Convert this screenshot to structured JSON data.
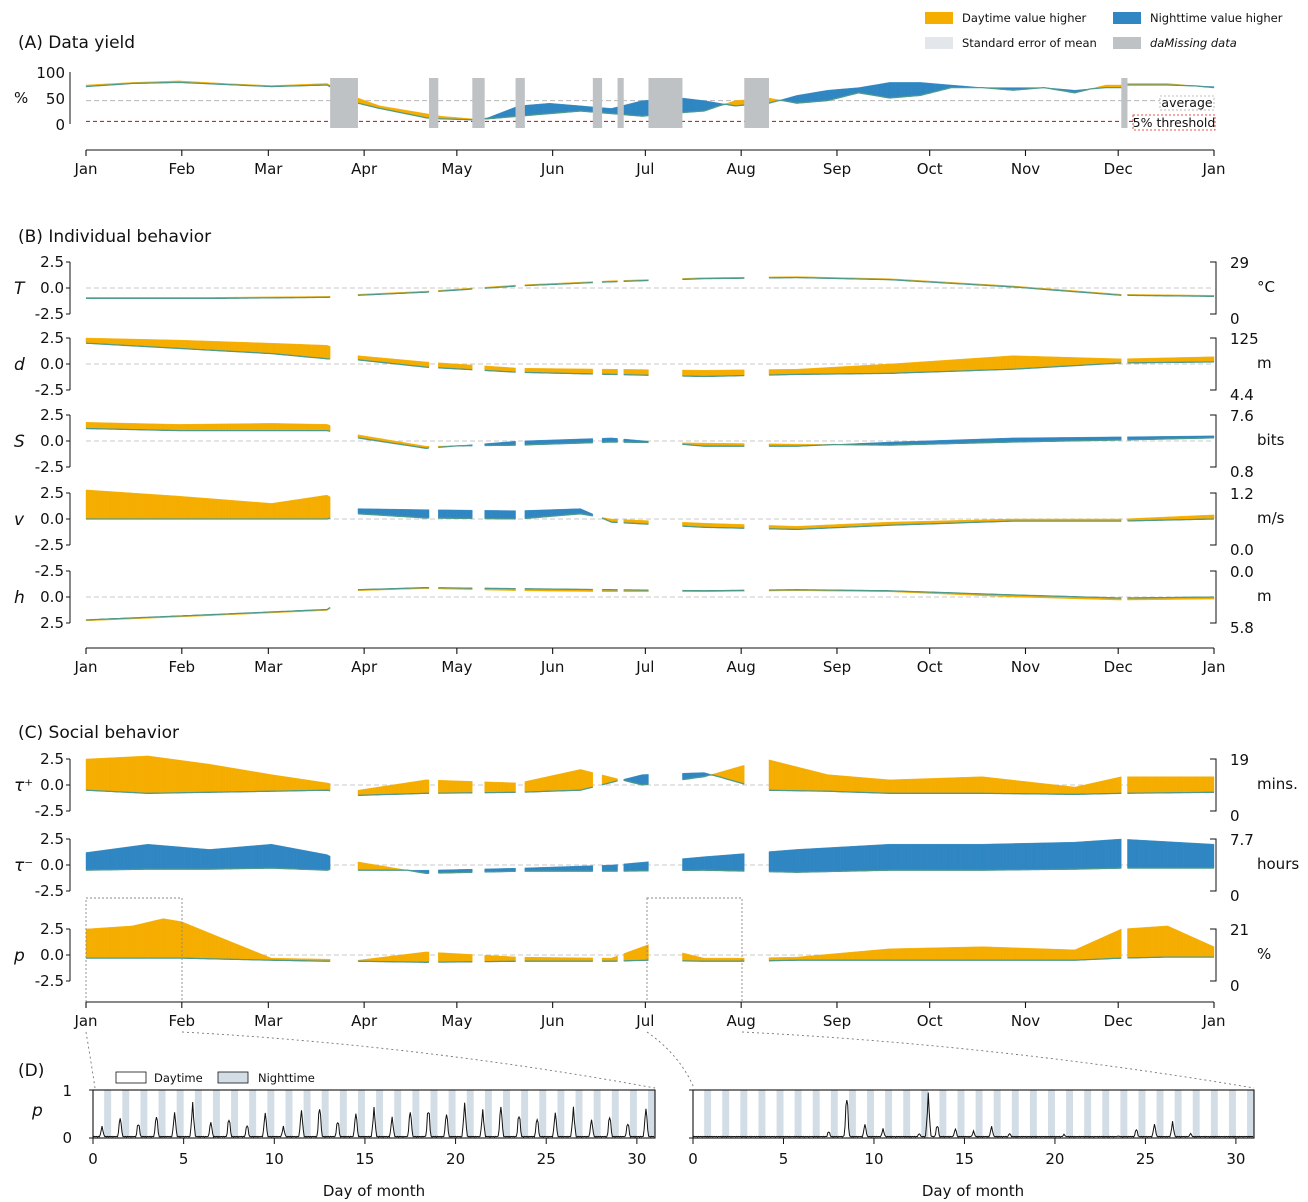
{
  "colors": {
    "day": "#f5ad00",
    "night": "#2f86c2",
    "sem": "#e3e6ea",
    "missing": "#bfc2c5",
    "mean_line": "#4f9a8a",
    "threshold": "#e0201b",
    "average_line": "#b8b8b8",
    "night_band": "#d3dde6"
  },
  "legend": {
    "day": "Daytime value higher",
    "night": "Nighttime value higher",
    "sem": "Standard error of mean",
    "missing": "daMissing data"
  },
  "months": [
    "Jan",
    "Feb",
    "Mar",
    "Apr",
    "May",
    "Jun",
    "Jul",
    "Aug",
    "Sep",
    "Oct",
    "Nov",
    "Dec",
    "Jan"
  ],
  "panel_a": {
    "title": "(A) Data yield",
    "ylabel": "%",
    "yticks": [
      "100",
      "50",
      "0"
    ],
    "average_label": "average",
    "threshold_label": "5% threshold"
  },
  "panel_b": {
    "title": "(B) Individual behavior",
    "rows": [
      {
        "label": "T",
        "ticks": [
          "2.5",
          "0.0",
          "-2.5"
        ],
        "right_top": "29",
        "unit": "°C",
        "right_bottom": "0"
      },
      {
        "label": "d",
        "ticks": [
          "2.5",
          "0.0",
          "-2.5"
        ],
        "right_top": "125",
        "unit": "m",
        "right_bottom": "4.4"
      },
      {
        "label": "S",
        "ticks": [
          "2.5",
          "0.0",
          "-2.5"
        ],
        "right_top": "7.6",
        "unit": "bits",
        "right_bottom": "0.8"
      },
      {
        "label": "v",
        "ticks": [
          "2.5",
          "0.0",
          "-2.5"
        ],
        "right_top": "1.2",
        "unit": "m/s",
        "right_bottom": "0.0"
      },
      {
        "label": "h",
        "ticks": [
          "-2.5",
          "0.0",
          "2.5"
        ],
        "right_top": "0.0",
        "unit": "m",
        "right_bottom": "5.8"
      }
    ]
  },
  "panel_c": {
    "title": "(C) Social behavior",
    "rows": [
      {
        "label": "τ⁺",
        "ticks": [
          "2.5",
          "0.0",
          "-2.5"
        ],
        "right_top": "19",
        "unit": "mins.",
        "right_bottom": "0"
      },
      {
        "label": "τ⁻",
        "ticks": [
          "2.5",
          "0.0",
          "-2.5"
        ],
        "right_top": "7.7",
        "unit": "hours",
        "right_bottom": "0"
      },
      {
        "label": "p",
        "ticks": [
          "2.5",
          "0.0",
          "-2.5"
        ],
        "right_top": "21",
        "unit": "%",
        "right_bottom": "0"
      }
    ]
  },
  "panel_d": {
    "title": "(D)",
    "ylabel": "p",
    "yticks": [
      "1",
      "0"
    ],
    "legend_day": "Daytime",
    "legend_night": "Nighttime",
    "xlabel": "Day of month",
    "xticks": [
      "0",
      "5",
      "10",
      "15",
      "20",
      "25",
      "30"
    ]
  },
  "chart_data": [
    {
      "type": "area",
      "panel": "A",
      "title": "(A) Data yield",
      "ylabel": "%",
      "ylim": [
        0,
        100
      ],
      "x_unit": "day of year",
      "average": 45,
      "threshold": 5,
      "missing_days": [
        [
          79,
          88
        ],
        [
          111,
          114
        ],
        [
          125,
          129
        ],
        [
          139,
          142
        ],
        [
          164,
          167
        ],
        [
          172,
          174
        ],
        [
          182,
          193
        ],
        [
          213,
          221
        ],
        [
          335,
          337
        ]
      ],
      "series": [
        {
          "name": "Daytime value higher",
          "x": [
            0,
            15,
            30,
            45,
            60,
            78,
            88,
            95,
            110,
            115,
            125,
            130,
            140,
            150,
            160,
            170,
            180,
            193,
            200,
            210,
            221,
            230,
            240,
            250,
            260,
            270,
            280,
            290,
            300,
            310,
            320,
            330,
            335,
            337,
            350,
            365
          ],
          "values": [
            75,
            80,
            83,
            78,
            74,
            78,
            50,
            35,
            20,
            15,
            10,
            10,
            15,
            20,
            25,
            20,
            15,
            22,
            25,
            45,
            50,
            40,
            45,
            60,
            50,
            55,
            70,
            70,
            65,
            70,
            60,
            75,
            75,
            78,
            78,
            70
          ]
        },
        {
          "name": "Nighttime value higher",
          "x": [
            0,
            15,
            30,
            45,
            60,
            78,
            88,
            95,
            110,
            115,
            125,
            130,
            140,
            150,
            160,
            170,
            180,
            193,
            200,
            210,
            221,
            230,
            240,
            250,
            260,
            270,
            280,
            290,
            300,
            310,
            320,
            330,
            335,
            337,
            350,
            365
          ],
          "values": [
            72,
            78,
            80,
            76,
            72,
            75,
            40,
            30,
            12,
            10,
            8,
            12,
            35,
            40,
            35,
            30,
            45,
            50,
            45,
            35,
            40,
            55,
            65,
            70,
            80,
            80,
            75,
            70,
            70,
            70,
            65,
            70,
            70,
            75,
            75,
            72
          ]
        }
      ]
    },
    {
      "type": "area",
      "panel": "B",
      "title": "(B) Individual behavior",
      "x_unit": "day of year",
      "ylim": [
        -2.5,
        2.5
      ],
      "gaps": [
        [
          79,
          88
        ],
        [
          111,
          114
        ],
        [
          125,
          129
        ],
        [
          139,
          142
        ],
        [
          164,
          167
        ],
        [
          172,
          174
        ],
        [
          182,
          193
        ],
        [
          213,
          221
        ],
        [
          335,
          337
        ]
      ],
      "series": [
        {
          "name": "T",
          "x": [
            0,
            40,
            78,
            88,
            110,
            140,
            170,
            200,
            230,
            260,
            300,
            335,
            365
          ],
          "day": [
            -0.9,
            -0.9,
            -0.8,
            -0.6,
            -0.3,
            0.3,
            0.7,
            1.0,
            1.1,
            0.9,
            0.2,
            -0.6,
            -0.7
          ],
          "night": [
            -1.0,
            -1.0,
            -0.9,
            -0.7,
            -0.4,
            0.2,
            0.6,
            0.9,
            1.0,
            0.8,
            0.1,
            -0.7,
            -0.8
          ]
        },
        {
          "name": "d",
          "x": [
            0,
            30,
            60,
            78,
            88,
            110,
            140,
            170,
            200,
            230,
            260,
            300,
            335,
            365
          ],
          "day": [
            2.5,
            2.3,
            2.0,
            1.8,
            0.8,
            0.2,
            -0.4,
            -0.5,
            -0.6,
            -0.5,
            0.0,
            0.8,
            0.5,
            0.7
          ],
          "night": [
            2.0,
            1.5,
            1.0,
            0.5,
            0.4,
            -0.3,
            -0.8,
            -1.0,
            -1.2,
            -1.0,
            -0.9,
            -0.5,
            0.1,
            0.2
          ]
        },
        {
          "name": "S",
          "x": [
            0,
            30,
            60,
            78,
            88,
            110,
            140,
            170,
            200,
            230,
            260,
            300,
            335,
            365
          ],
          "day": [
            1.8,
            1.6,
            1.7,
            1.6,
            0.6,
            -0.5,
            -0.4,
            -0.1,
            -0.2,
            -0.3,
            -0.4,
            -0.1,
            0.1,
            0.3
          ],
          "night": [
            1.2,
            1.0,
            1.0,
            1.0,
            0.3,
            -0.7,
            0.0,
            0.3,
            -0.5,
            -0.5,
            -0.1,
            0.3,
            0.4,
            0.5
          ]
        },
        {
          "name": "v",
          "x": [
            0,
            30,
            60,
            78,
            88,
            110,
            140,
            160,
            170,
            200,
            230,
            260,
            300,
            335,
            365
          ],
          "day": [
            2.8,
            2.2,
            1.5,
            2.3,
            0.5,
            0.1,
            0.0,
            0.5,
            0.0,
            -0.4,
            -0.7,
            -0.3,
            0.0,
            0.0,
            0.4
          ],
          "night": [
            0.0,
            0.0,
            0.0,
            0.0,
            1.0,
            0.9,
            0.8,
            1.0,
            -0.3,
            -0.8,
            -1.0,
            -0.6,
            -0.2,
            -0.2,
            0.0
          ]
        },
        {
          "name": "h",
          "x": [
            0,
            40,
            78,
            88,
            110,
            140,
            170,
            200,
            230,
            260,
            300,
            335,
            365
          ],
          "day": [
            2.3,
            1.8,
            1.3,
            -0.6,
            -0.8,
            -0.6,
            -0.5,
            -0.5,
            -0.6,
            -0.5,
            0.0,
            0.3,
            0.2
          ],
          "night": [
            2.2,
            1.7,
            1.2,
            -0.7,
            -0.9,
            -0.8,
            -0.7,
            -0.6,
            -0.7,
            -0.6,
            -0.2,
            0.1,
            0.0
          ]
        }
      ]
    },
    {
      "type": "area",
      "panel": "C",
      "title": "(C) Social behavior",
      "x_unit": "day of year",
      "ylim": [
        -2.5,
        2.5
      ],
      "gaps": [
        [
          79,
          88
        ],
        [
          111,
          114
        ],
        [
          125,
          129
        ],
        [
          139,
          142
        ],
        [
          164,
          167
        ],
        [
          172,
          174
        ],
        [
          182,
          193
        ],
        [
          213,
          221
        ],
        [
          335,
          337
        ]
      ],
      "series": [
        {
          "name": "τ⁺",
          "x": [
            0,
            20,
            40,
            60,
            78,
            88,
            110,
            140,
            160,
            180,
            200,
            220,
            240,
            260,
            290,
            320,
            335,
            365
          ],
          "day": [
            2.5,
            2.8,
            2.0,
            1.0,
            0.2,
            -0.5,
            0.5,
            0.2,
            1.5,
            0.0,
            0.8,
            2.5,
            1.0,
            0.5,
            0.8,
            -0.2,
            0.8,
            0.8
          ],
          "night": [
            -0.5,
            -0.8,
            -0.7,
            -0.6,
            -0.5,
            -1.0,
            -0.8,
            -0.7,
            -0.5,
            1.0,
            1.2,
            -0.5,
            -0.6,
            -0.8,
            -0.8,
            -0.9,
            -0.8,
            -0.7
          ]
        },
        {
          "name": "τ⁻",
          "x": [
            0,
            20,
            40,
            60,
            78,
            88,
            110,
            140,
            170,
            200,
            230,
            260,
            290,
            320,
            335,
            365
          ],
          "day": [
            -0.5,
            -0.4,
            -0.4,
            -0.3,
            -0.5,
            0.3,
            -0.8,
            -0.6,
            -0.6,
            -0.5,
            -0.7,
            -0.5,
            -0.5,
            -0.4,
            -0.3,
            -0.3
          ],
          "night": [
            1.2,
            2.0,
            1.5,
            2.0,
            1.0,
            -0.5,
            -0.5,
            -0.3,
            0.0,
            0.8,
            1.5,
            2.0,
            2.0,
            2.2,
            2.5,
            2.0
          ]
        },
        {
          "name": "p",
          "x": [
            0,
            15,
            25,
            31,
            45,
            60,
            78,
            88,
            110,
            140,
            170,
            182,
            200,
            213,
            230,
            260,
            290,
            320,
            335,
            350,
            365
          ],
          "day": [
            2.5,
            2.8,
            3.5,
            3.2,
            1.5,
            -0.3,
            -0.4,
            -0.5,
            0.3,
            -0.2,
            -0.3,
            1.0,
            -0.3,
            -0.3,
            -0.2,
            0.6,
            0.8,
            0.5,
            2.5,
            2.8,
            0.8
          ],
          "night": [
            -0.3,
            -0.3,
            -0.3,
            -0.3,
            -0.4,
            -0.5,
            -0.6,
            -0.6,
            -0.7,
            -0.6,
            -0.6,
            -0.5,
            -0.6,
            -0.6,
            -0.5,
            -0.5,
            -0.5,
            -0.5,
            -0.3,
            -0.2,
            -0.2
          ]
        }
      ]
    },
    {
      "type": "line",
      "panel": "D",
      "xlabel": "Day of month",
      "ylabel": "p",
      "ylim": [
        0,
        1
      ],
      "xlim": [
        0,
        31
      ],
      "series": [
        {
          "name": "Jan",
          "peak_days": [
            0.5,
            1.5,
            2.5,
            3.5,
            4.5,
            5.5,
            6.5,
            7.5,
            8.5,
            9.5,
            10.5,
            11.5,
            12.5,
            13.5,
            14.5,
            15.5,
            16.5,
            17.5,
            18.5,
            19.5,
            20.5,
            21.5,
            22.5,
            23.5,
            24.5,
            25.5,
            26.5,
            27.5,
            28.5,
            29.5,
            30.5
          ],
          "peaks": [
            0.25,
            0.45,
            0.35,
            0.5,
            0.55,
            0.75,
            0.35,
            0.45,
            0.3,
            0.55,
            0.25,
            0.6,
            0.7,
            0.4,
            0.55,
            0.65,
            0.45,
            0.6,
            0.7,
            0.55,
            0.75,
            0.6,
            0.7,
            0.55,
            0.45,
            0.55,
            0.65,
            0.4,
            0.5,
            0.35,
            0.65
          ]
        },
        {
          "name": "Jul",
          "peak_days": [
            7.5,
            8.5,
            9.5,
            10.5,
            12.5,
            13.0,
            13.5,
            14.5,
            15.5,
            16.5,
            17.5,
            20.5,
            23.5,
            24.5,
            25.5,
            26.5,
            27.5
          ],
          "peaks": [
            0.15,
            0.95,
            0.3,
            0.2,
            0.1,
            0.95,
            0.3,
            0.2,
            0.15,
            0.25,
            0.1,
            0.08,
            0.05,
            0.2,
            0.3,
            0.35,
            0.1
          ]
        }
      ]
    }
  ]
}
